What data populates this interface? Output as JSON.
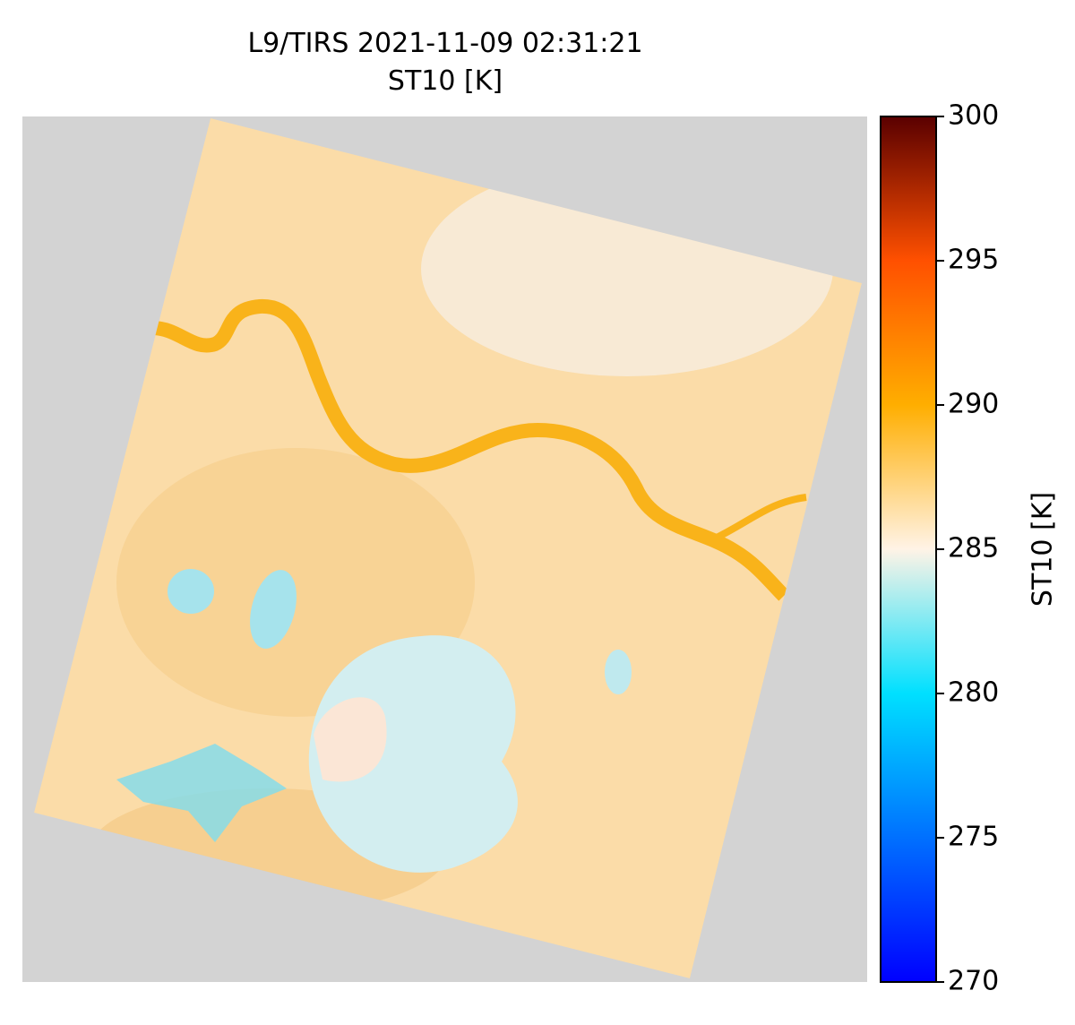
{
  "title": [
    "L9/TIRS 2021-11-09 02:31:21",
    "ST10 [K]"
  ],
  "colorbar": {
    "label": "ST10 [K]",
    "lim": [
      270,
      300
    ],
    "ticks": [
      270,
      275,
      280,
      285,
      290,
      295,
      300
    ],
    "colors": [
      "#0000ff",
      "#0070ff",
      "#00e0ff",
      "#fff3e6",
      "#ffae00",
      "#ff5000",
      "#5a0000"
    ]
  }
}
